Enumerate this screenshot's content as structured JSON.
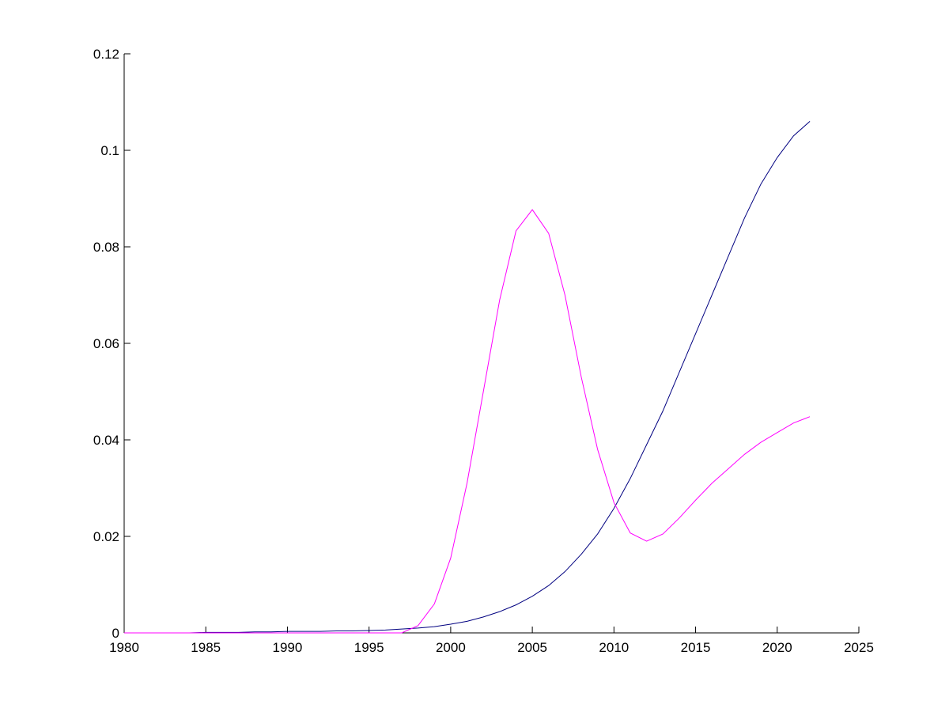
{
  "chart_data": {
    "type": "line",
    "x": [
      1980,
      1981,
      1982,
      1983,
      1984,
      1985,
      1986,
      1987,
      1988,
      1989,
      1990,
      1991,
      1992,
      1993,
      1994,
      1995,
      1996,
      1997,
      1998,
      1999,
      2000,
      2001,
      2002,
      2003,
      2004,
      2005,
      2006,
      2007,
      2008,
      2009,
      2010,
      2011,
      2012,
      2013,
      2014,
      2015,
      2016,
      2017,
      2018,
      2019,
      2020,
      2021,
      2022
    ],
    "series": [
      {
        "color": "#000080",
        "values": [
          0,
          0,
          0,
          0,
          0,
          0.0001,
          0.0001,
          0.0001,
          0.0002,
          0.0002,
          0.0003,
          0.0003,
          0.0003,
          0.0004,
          0.0004,
          0.0005,
          0.0006,
          0.0008,
          0.001,
          0.0013,
          0.0018,
          0.0024,
          0.0033,
          0.0044,
          0.0058,
          0.0076,
          0.0098,
          0.0127,
          0.0163,
          0.0205,
          0.0258,
          0.032,
          0.039,
          0.046,
          0.054,
          0.062,
          0.07,
          0.078,
          0.086,
          0.093,
          0.0985,
          0.103,
          0.106
        ]
      },
      {
        "color": "#ff00ff",
        "values": [
          0,
          0,
          0,
          0,
          0,
          0,
          0,
          0,
          0,
          0,
          0,
          0,
          0,
          0,
          0,
          0,
          0,
          0,
          0.0015,
          0.006,
          0.0155,
          0.031,
          0.05,
          0.069,
          0.0833,
          0.0877,
          0.0828,
          0.07,
          0.053,
          0.038,
          0.027,
          0.0207,
          0.019,
          0.0205,
          0.0238,
          0.0275,
          0.031,
          0.034,
          0.037,
          0.0395,
          0.0415,
          0.0435,
          0.0448
        ]
      }
    ],
    "xlim": [
      1980,
      2025
    ],
    "xticks": [
      1980,
      1985,
      1990,
      1995,
      2000,
      2005,
      2010,
      2015,
      2020,
      2025
    ],
    "ylim": [
      0,
      0.12
    ],
    "yticks": [
      0,
      0.02,
      0.04,
      0.06,
      0.08,
      0.1,
      0.12
    ]
  }
}
